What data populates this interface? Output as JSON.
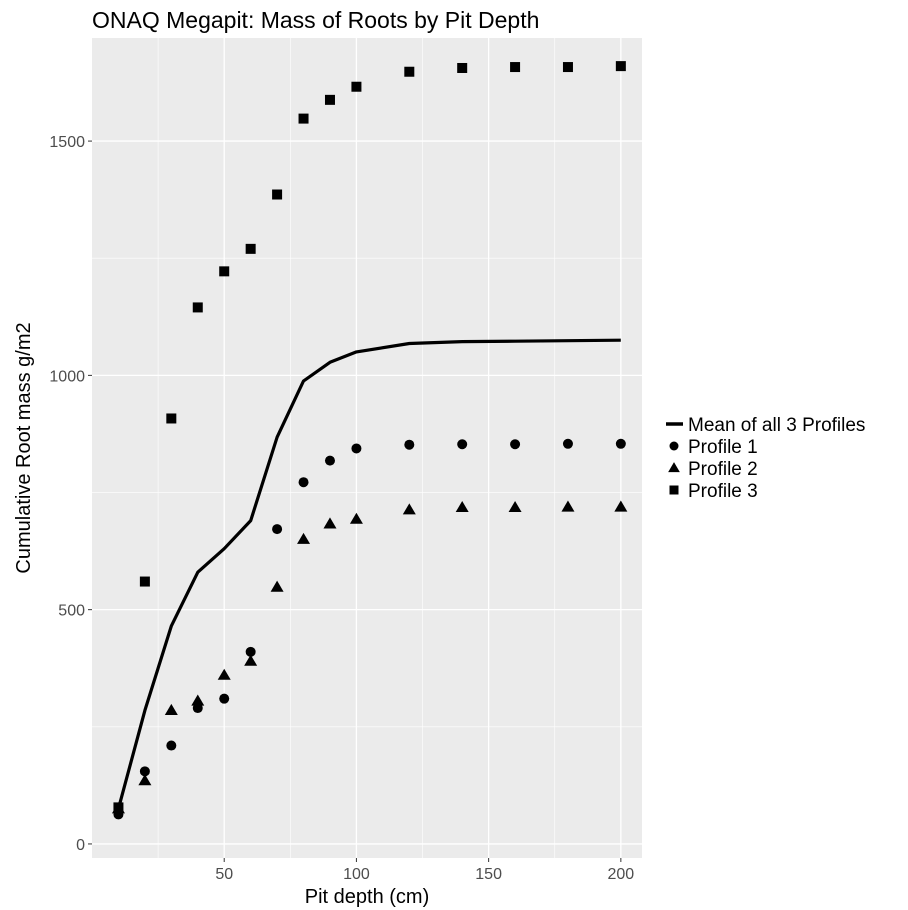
{
  "chart_data": {
    "type": "scatter",
    "title": "ONAQ Megapit: Mass of Roots by Pit Depth",
    "xlabel": "Pit depth (cm)",
    "ylabel": "Cumulative Root mass g/m2",
    "xlim": [
      0,
      208
    ],
    "ylim": [
      -30,
      1720
    ],
    "x_ticks": [
      50,
      100,
      150,
      200
    ],
    "y_ticks": [
      0,
      500,
      1000,
      1500
    ],
    "grid": true,
    "background": "#ebebeb",
    "gridline_color": "#ffffff",
    "legend_position": "right",
    "x": [
      10,
      20,
      30,
      40,
      50,
      60,
      70,
      80,
      90,
      100,
      120,
      140,
      160,
      180,
      200
    ],
    "series": [
      {
        "name": "Mean of all 3 Profiles",
        "mark": "line",
        "color": "#000000",
        "values": [
          75,
          285,
          465,
          580,
          630,
          690,
          868,
          988,
          1028,
          1050,
          1068,
          1072,
          1073,
          1074,
          1075
        ]
      },
      {
        "name": "Profile 1",
        "mark": "circle",
        "color": "#000000",
        "values": [
          63,
          155,
          210,
          290,
          310,
          410,
          672,
          772,
          818,
          844,
          852,
          853,
          853,
          854,
          854
        ]
      },
      {
        "name": "Profile 2",
        "mark": "triangle",
        "color": "#000000",
        "values": [
          75,
          135,
          285,
          305,
          360,
          390,
          548,
          650,
          683,
          693,
          713,
          718,
          718,
          719,
          719
        ]
      },
      {
        "name": "Profile 3",
        "mark": "square",
        "color": "#000000",
        "values": [
          78,
          560,
          908,
          1145,
          1222,
          1270,
          1386,
          1548,
          1588,
          1616,
          1648,
          1656,
          1658,
          1658,
          1660
        ]
      }
    ]
  }
}
